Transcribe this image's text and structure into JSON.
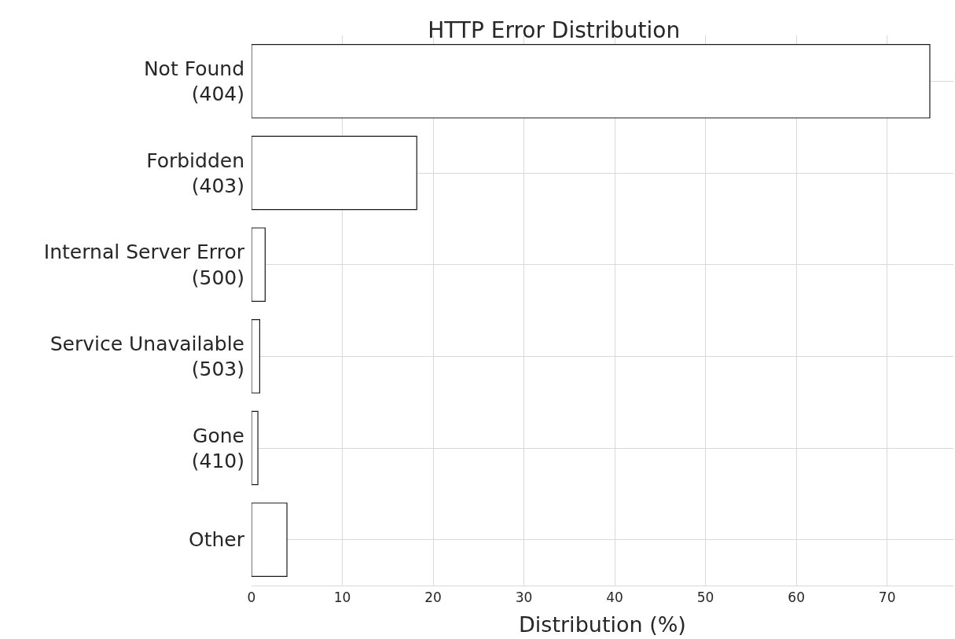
{
  "chart_data": {
    "type": "bar",
    "orientation": "horizontal",
    "title": "HTTP Error Distribution",
    "xlabel": "Distribution (%)",
    "categories": [
      "Not Found\n(404)",
      "Forbidden\n(403)",
      "Internal Server Error\n(500)",
      "Service Unavailable\n(503)",
      "Gone\n(410)",
      "Other"
    ],
    "values": [
      74.7,
      18.2,
      1.5,
      0.9,
      0.7,
      3.9
    ],
    "color": "#ffffff",
    "xlim": [
      0,
      77.3
    ],
    "xticks": [
      0,
      10,
      20,
      30,
      40,
      50,
      60,
      70
    ],
    "grid": true,
    "legend": false
  }
}
